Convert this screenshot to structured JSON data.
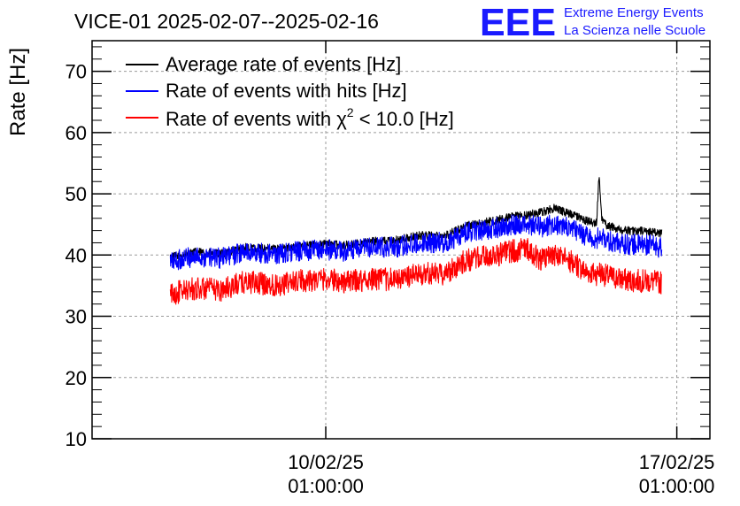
{
  "logo": {
    "mark": "EEE",
    "line1": "Extreme Energy Events",
    "line2": "La Scienza nelle Scuole",
    "color": "#1a1aff"
  },
  "colors": {
    "black": "#000000",
    "blue": "#0000ff",
    "red": "#ff0000",
    "grid": "#9a9a9a"
  },
  "chart_data": {
    "type": "line",
    "title": "VICE-01 2025-02-07--2025-02-16",
    "xlabel": "",
    "ylabel": "Rate [Hz]",
    "ylim": [
      10,
      75
    ],
    "yticks": [
      10,
      20,
      30,
      40,
      50,
      60,
      70
    ],
    "xlim": [
      -4.66,
      7.66
    ],
    "xticks": [
      {
        "x": 0,
        "date": "10/02/25",
        "time": "01:00:00"
      },
      {
        "x": 7,
        "date": "17/02/25",
        "time": "01:00:00"
      }
    ],
    "grid": true,
    "legend_position": "top-left",
    "x_unit": "days relative to 10/02/25 01:00:00",
    "series": [
      {
        "name": "Average rate of events [Hz]",
        "color": "#000000",
        "band": 0.7,
        "points": [
          [
            -3.1,
            39.6
          ],
          [
            -2.6,
            40.5
          ],
          [
            -2.1,
            40.2
          ],
          [
            -1.6,
            41.2
          ],
          [
            -1.0,
            41.0
          ],
          [
            -0.5,
            41.5
          ],
          [
            0.0,
            41.8
          ],
          [
            0.4,
            41.6
          ],
          [
            0.9,
            42.2
          ],
          [
            1.4,
            42.4
          ],
          [
            1.9,
            43.2
          ],
          [
            2.4,
            43.2
          ],
          [
            2.8,
            44.8
          ],
          [
            3.3,
            45.5
          ],
          [
            3.7,
            46.2
          ],
          [
            4.0,
            46.5
          ],
          [
            4.3,
            47.0
          ],
          [
            4.55,
            47.6
          ],
          [
            4.85,
            46.8
          ],
          [
            5.2,
            45.6
          ],
          [
            5.4,
            45.2
          ],
          [
            5.45,
            53.0
          ],
          [
            5.5,
            46.0
          ],
          [
            5.6,
            44.8
          ],
          [
            6.0,
            44.0
          ],
          [
            6.5,
            43.8
          ],
          [
            6.7,
            43.5
          ]
        ]
      },
      {
        "name": "Rate of events with hits [Hz]",
        "color": "#0000ff",
        "band": 1.7,
        "points": [
          [
            -3.1,
            38.9
          ],
          [
            -2.6,
            39.8
          ],
          [
            -2.1,
            39.5
          ],
          [
            -1.6,
            40.5
          ],
          [
            -1.0,
            40.1
          ],
          [
            -0.5,
            40.7
          ],
          [
            0.0,
            40.9
          ],
          [
            0.4,
            40.6
          ],
          [
            0.9,
            41.2
          ],
          [
            1.4,
            41.3
          ],
          [
            1.9,
            42.1
          ],
          [
            2.4,
            42.0
          ],
          [
            2.8,
            43.8
          ],
          [
            3.3,
            44.3
          ],
          [
            3.7,
            44.9
          ],
          [
            4.0,
            45.0
          ],
          [
            4.3,
            44.6
          ],
          [
            4.55,
            45.0
          ],
          [
            4.85,
            44.4
          ],
          [
            5.2,
            43.0
          ],
          [
            5.4,
            42.6
          ],
          [
            5.45,
            43.2
          ],
          [
            5.5,
            42.8
          ],
          [
            5.6,
            42.3
          ],
          [
            6.0,
            41.8
          ],
          [
            6.5,
            41.6
          ],
          [
            6.7,
            41.2
          ]
        ]
      },
      {
        "name": "Rate of events with χ² < 10.0 [Hz]",
        "color": "#ff0000",
        "band": 1.9,
        "points": [
          [
            -3.1,
            33.6
          ],
          [
            -2.6,
            34.6
          ],
          [
            -2.1,
            34.3
          ],
          [
            -1.6,
            35.6
          ],
          [
            -1.0,
            35.1
          ],
          [
            -0.5,
            35.8
          ],
          [
            0.0,
            36.1
          ],
          [
            0.4,
            35.6
          ],
          [
            0.9,
            36.1
          ],
          [
            1.4,
            36.0
          ],
          [
            1.9,
            36.9
          ],
          [
            2.4,
            37.0
          ],
          [
            2.8,
            39.2
          ],
          [
            3.3,
            39.8
          ],
          [
            3.7,
            40.6
          ],
          [
            4.0,
            41.0
          ],
          [
            4.3,
            39.2
          ],
          [
            4.55,
            39.9
          ],
          [
            4.85,
            39.2
          ],
          [
            5.2,
            37.2
          ],
          [
            5.4,
            36.9
          ],
          [
            5.45,
            37.5
          ],
          [
            5.5,
            37.0
          ],
          [
            5.6,
            36.6
          ],
          [
            6.0,
            35.9
          ],
          [
            6.5,
            35.7
          ],
          [
            6.7,
            35.5
          ]
        ]
      }
    ],
    "legend": [
      {
        "label": "Average rate of events [Hz]",
        "color": "#000000"
      },
      {
        "label": "Rate of events with hits [Hz]",
        "color": "#0000ff"
      },
      {
        "label_prefix": "Rate of events with ",
        "chi": "χ",
        "sup": "2",
        "label_suffix": " < 10.0 [Hz]",
        "color": "#ff0000"
      }
    ]
  }
}
